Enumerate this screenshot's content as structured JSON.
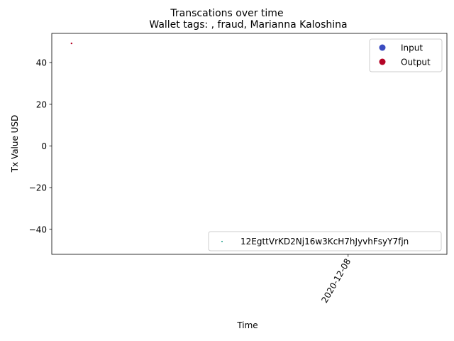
{
  "chart_data": {
    "type": "scatter",
    "suptitle": "Transcations over time",
    "title": "Wallet tags: , fraud, Marianna Kaloshina",
    "xlabel": "Time",
    "ylabel": "Tx Value USD",
    "ylim": [
      -52,
      54
    ],
    "xlim": [
      "2020-11-23",
      "2020-12-13"
    ],
    "x_ticks": [
      "2020-12-08"
    ],
    "y_ticks": [
      -40,
      -20,
      0,
      20,
      40
    ],
    "grid": false,
    "legend_location": "upper right",
    "legend_entries": [
      {
        "label": "Input",
        "color": "#3b4cc0"
      },
      {
        "label": "Output",
        "color": "#b40426"
      }
    ],
    "series": [
      {
        "name": "12EgttVrKD2Nj16w3KcH7hJyvhFsyY7fjn",
        "legend_location": "lower right",
        "color": "#1f9e89",
        "points": [
          {
            "x": "2020-11-24",
            "y": 49.2,
            "direction": "Output"
          }
        ]
      }
    ]
  }
}
